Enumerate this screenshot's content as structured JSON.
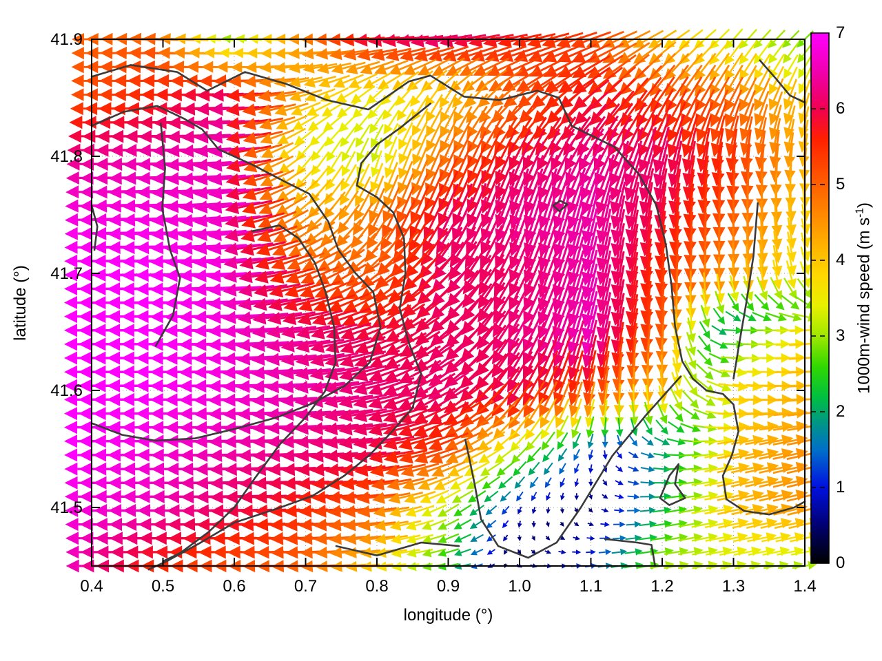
{
  "chart_data": {
    "type": "quiver",
    "title": "",
    "xlabel": "longitude (°)",
    "ylabel": "latitude (°)",
    "xlim": [
      0.4,
      1.4
    ],
    "ylim": [
      41.45,
      41.9
    ],
    "xticks": [
      "0.4",
      "0.5",
      "0.6",
      "0.7",
      "0.8",
      "0.9",
      "1.0",
      "1.1",
      "1.2",
      "1.3",
      "1.4"
    ],
    "yticks": [
      "41.5",
      "41.6",
      "41.7",
      "41.8",
      "41.9"
    ],
    "grid": "dotted-at-major-ticks",
    "colorbar": {
      "label": "1000m-wind speed (m s⁻¹)",
      "label_main": "1000m-wind speed (m s",
      "label_sup": "-1",
      "label_close": ")",
      "ticks": [
        "0",
        "1",
        "2",
        "3",
        "4",
        "5",
        "6",
        "7"
      ],
      "lim": [
        0,
        7
      ],
      "palette": [
        [
          0.0,
          "#000000"
        ],
        [
          0.5,
          "#000070"
        ],
        [
          1.0,
          "#0010e0"
        ],
        [
          1.5,
          "#0070c8"
        ],
        [
          1.8,
          "#009090"
        ],
        [
          2.2,
          "#00c040"
        ],
        [
          2.6,
          "#30d800"
        ],
        [
          3.0,
          "#a0e800"
        ],
        [
          3.4,
          "#e8f000"
        ],
        [
          3.8,
          "#ffd800"
        ],
        [
          4.3,
          "#ffa800"
        ],
        [
          5.0,
          "#ff6000"
        ],
        [
          5.6,
          "#ff2000"
        ],
        [
          6.0,
          "#f00050"
        ],
        [
          6.5,
          "#f000b0"
        ],
        [
          7.0,
          "#ff00ff"
        ]
      ]
    },
    "contour_color": "#3a3a3a",
    "wind_field": {
      "units": "m/s",
      "lons": [
        0.4,
        0.5,
        0.6,
        0.7,
        0.8,
        0.9,
        1.0,
        1.1,
        1.2,
        1.3,
        1.4
      ],
      "lats": [
        41.9,
        41.85,
        41.8,
        41.75,
        41.7,
        41.65,
        41.6,
        41.55,
        41.5,
        41.45
      ],
      "u": [
        [
          -5.0,
          -5.0,
          -3.0,
          -4.5,
          -5.8,
          -6.0,
          -5.5,
          -5.0,
          -3.5,
          -2.2,
          -2.0
        ],
        [
          -5.2,
          -5.6,
          -6.2,
          -4.0,
          -2.5,
          -2.0,
          -4.0,
          -4.5,
          -3.0,
          -2.3,
          -1.2
        ],
        [
          -6.3,
          -6.5,
          -6.5,
          -2.2,
          -1.0,
          -2.0,
          -2.5,
          -3.0,
          -1.5,
          -0.6,
          -0.5
        ],
        [
          -6.8,
          -6.8,
          -6.6,
          -3.5,
          -2.0,
          -2.5,
          -2.0,
          -1.5,
          -0.8,
          0.0,
          0.6
        ],
        [
          -7.0,
          -7.0,
          -6.8,
          -5.0,
          -4.0,
          -4.2,
          -2.5,
          -1.5,
          -0.5,
          0.2,
          1.0
        ],
        [
          -7.0,
          -7.0,
          -6.8,
          -6.2,
          -5.5,
          -4.6,
          -3.0,
          -1.5,
          -0.5,
          2.4,
          3.8
        ],
        [
          -7.0,
          -7.0,
          -6.8,
          -6.5,
          -6.0,
          -5.2,
          -3.2,
          -1.0,
          0.5,
          3.8,
          4.2
        ],
        [
          -7.0,
          -6.8,
          -6.5,
          -6.3,
          -6.0,
          -5.0,
          -2.2,
          -0.4,
          2.0,
          4.0,
          4.5
        ],
        [
          -6.8,
          -6.6,
          -6.1,
          -5.6,
          -5.0,
          -2.6,
          -0.4,
          0.3,
          2.2,
          4.0,
          4.4
        ],
        [
          -6.5,
          -5.6,
          -5.2,
          -5.0,
          -4.0,
          -2.5,
          0.5,
          1.3,
          3.0,
          3.2,
          3.0
        ]
      ],
      "v": [
        [
          0.0,
          0.2,
          0.3,
          0.0,
          -0.5,
          -1.0,
          -1.2,
          -1.8,
          -2.2,
          -2.5,
          -2.0
        ],
        [
          0.0,
          0.0,
          -0.3,
          -1.2,
          -2.5,
          -3.5,
          -3.2,
          -3.8,
          -4.6,
          -4.5,
          -3.8
        ],
        [
          0.0,
          -0.2,
          -0.6,
          -2.8,
          -3.1,
          -4.5,
          -5.5,
          -5.6,
          -6.0,
          -5.5,
          -4.2
        ],
        [
          -0.2,
          -0.3,
          -0.8,
          -2.8,
          -4.5,
          -5.6,
          -6.0,
          -6.3,
          -5.8,
          -5.0,
          -3.8
        ],
        [
          0.0,
          -0.2,
          -0.5,
          -1.8,
          -3.2,
          -4.5,
          -5.6,
          -6.3,
          -5.4,
          -4.4,
          -3.4
        ],
        [
          0.0,
          0.0,
          -0.3,
          -1.0,
          -2.2,
          -4.0,
          -5.5,
          -6.4,
          -5.0,
          0.0,
          0.3
        ],
        [
          0.0,
          0.0,
          -0.2,
          -0.5,
          -1.5,
          -3.4,
          -5.0,
          -5.0,
          -4.0,
          -0.5,
          0.2
        ],
        [
          0.0,
          0.0,
          -0.2,
          -0.3,
          -0.8,
          -1.8,
          -2.2,
          -1.2,
          -0.4,
          0.8,
          1.0
        ],
        [
          0.0,
          0.0,
          -0.2,
          -0.3,
          -0.6,
          -1.6,
          -0.8,
          -0.4,
          0.3,
          0.9,
          1.1
        ],
        [
          0.0,
          0.0,
          0.0,
          -0.2,
          -0.4,
          -0.5,
          -0.3,
          0.2,
          0.5,
          0.6,
          0.5
        ]
      ]
    },
    "contours": [
      [
        [
          0.4,
          41.868
        ],
        [
          0.455,
          41.878
        ],
        [
          0.52,
          41.872
        ],
        [
          0.562,
          41.856
        ],
        [
          0.615,
          41.872
        ],
        [
          0.672,
          41.862
        ],
        [
          0.73,
          41.848
        ],
        [
          0.788,
          41.84
        ],
        [
          0.845,
          41.864
        ],
        [
          0.875,
          41.869
        ],
        [
          0.922,
          41.851
        ],
        [
          0.972,
          41.848
        ],
        [
          1.025,
          41.856
        ],
        [
          1.055,
          41.85
        ],
        [
          1.073,
          41.826
        ],
        [
          1.133,
          41.808
        ],
        [
          1.167,
          41.785
        ],
        [
          1.192,
          41.758
        ],
        [
          1.205,
          41.725
        ],
        [
          1.213,
          41.69
        ],
        [
          1.218,
          41.655
        ],
        [
          1.228,
          41.625
        ],
        [
          1.243,
          41.61
        ],
        [
          1.262,
          41.6
        ],
        [
          1.285,
          41.597
        ],
        [
          1.3,
          41.588
        ],
        [
          1.307,
          41.565
        ],
        [
          1.298,
          41.545
        ],
        [
          1.285,
          41.527
        ],
        [
          1.29,
          41.507
        ],
        [
          1.315,
          41.497
        ],
        [
          1.35,
          41.494
        ],
        [
          1.385,
          41.5
        ],
        [
          1.4,
          41.505
        ]
      ],
      [
        [
          1.337,
          41.882
        ],
        [
          1.36,
          41.866
        ],
        [
          1.379,
          41.852
        ],
        [
          1.4,
          41.846
        ]
      ],
      [
        [
          1.334,
          41.76
        ],
        [
          1.328,
          41.715
        ],
        [
          1.318,
          41.675
        ],
        [
          1.308,
          41.64
        ],
        [
          1.3,
          41.61
        ]
      ],
      [
        [
          0.4,
          41.826
        ],
        [
          0.445,
          41.838
        ],
        [
          0.492,
          41.843
        ],
        [
          0.53,
          41.832
        ],
        [
          0.555,
          41.823
        ],
        [
          0.578,
          41.806
        ],
        [
          0.628,
          41.792
        ],
        [
          0.672,
          41.778
        ],
        [
          0.705,
          41.768
        ],
        [
          0.732,
          41.744
        ],
        [
          0.746,
          41.72
        ],
        [
          0.77,
          41.7
        ],
        [
          0.795,
          41.684
        ],
        [
          0.805,
          41.654
        ],
        [
          0.79,
          41.624
        ],
        [
          0.755,
          41.604
        ],
        [
          0.71,
          41.589
        ],
        [
          0.66,
          41.577
        ],
        [
          0.6,
          41.567
        ],
        [
          0.545,
          41.559
        ],
        [
          0.49,
          41.557
        ],
        [
          0.443,
          41.562
        ],
        [
          0.4,
          41.572
        ]
      ],
      [
        [
          0.497,
          41.828
        ],
        [
          0.503,
          41.79
        ],
        [
          0.499,
          41.755
        ],
        [
          0.51,
          41.72
        ],
        [
          0.524,
          41.696
        ],
        [
          0.514,
          41.664
        ],
        [
          0.49,
          41.638
        ]
      ],
      [
        [
          0.875,
          41.845
        ],
        [
          0.832,
          41.824
        ],
        [
          0.8,
          41.81
        ],
        [
          0.778,
          41.794
        ],
        [
          0.772,
          41.775
        ],
        [
          0.8,
          41.765
        ],
        [
          0.823,
          41.752
        ],
        [
          0.838,
          41.73
        ],
        [
          0.84,
          41.7
        ],
        [
          0.832,
          41.67
        ],
        [
          0.845,
          41.64
        ],
        [
          0.862,
          41.614
        ],
        [
          0.85,
          41.585
        ],
        [
          0.82,
          41.564
        ],
        [
          0.79,
          41.545
        ],
        [
          0.754,
          41.527
        ],
        [
          0.71,
          41.51
        ],
        [
          0.66,
          41.499
        ],
        [
          0.6,
          41.487
        ],
        [
          0.55,
          41.469
        ],
        [
          0.505,
          41.454
        ],
        [
          0.48,
          41.447
        ]
      ],
      [
        [
          0.625,
          41.736
        ],
        [
          0.663,
          41.741
        ],
        [
          0.69,
          41.73
        ],
        [
          0.713,
          41.709
        ],
        [
          0.728,
          41.684
        ],
        [
          0.74,
          41.654
        ],
        [
          0.742,
          41.624
        ],
        [
          0.727,
          41.599
        ],
        [
          0.7,
          41.577
        ],
        [
          0.664,
          41.554
        ],
        [
          0.63,
          41.526
        ],
        [
          0.6,
          41.5
        ],
        [
          0.564,
          41.479
        ],
        [
          0.524,
          41.461
        ],
        [
          0.5,
          41.454
        ]
      ],
      [
        [
          0.924,
          41.558
        ],
        [
          0.937,
          41.52
        ],
        [
          0.946,
          41.49
        ],
        [
          0.97,
          41.467
        ],
        [
          1.012,
          41.457
        ],
        [
          1.052,
          41.47
        ],
        [
          1.086,
          41.5
        ],
        [
          1.13,
          41.544
        ],
        [
          1.176,
          41.578
        ],
        [
          1.226,
          41.612
        ]
      ],
      [
        [
          1.197,
          41.508
        ],
        [
          1.21,
          41.527
        ],
        [
          1.223,
          41.537
        ],
        [
          1.218,
          41.52
        ],
        [
          1.232,
          41.508
        ],
        [
          1.21,
          41.502
        ],
        [
          1.197,
          41.508
        ]
      ],
      [
        [
          1.047,
          41.758
        ],
        [
          1.057,
          41.762
        ],
        [
          1.067,
          41.759
        ],
        [
          1.056,
          41.753
        ],
        [
          1.047,
          41.758
        ]
      ],
      [
        [
          0.4,
          41.758
        ],
        [
          0.408,
          41.74
        ],
        [
          0.404,
          41.72
        ]
      ],
      [
        [
          0.743,
          41.467
        ],
        [
          0.8,
          41.459
        ],
        [
          0.862,
          41.47
        ],
        [
          0.915,
          41.467
        ]
      ],
      [
        [
          1.12,
          41.473
        ],
        [
          1.165,
          41.47
        ],
        [
          1.185,
          41.468
        ],
        [
          1.19,
          41.45
        ]
      ]
    ]
  }
}
